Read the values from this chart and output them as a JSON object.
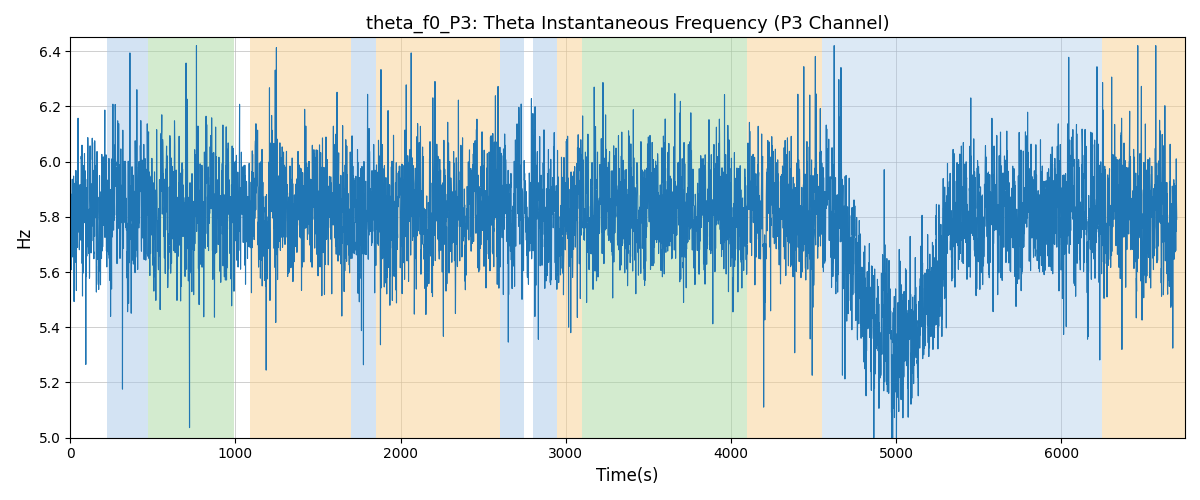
{
  "title": "theta_f0_P3: Theta Instantaneous Frequency (P3 Channel)",
  "xlabel": "Time(s)",
  "ylabel": "Hz",
  "ylim": [
    5.0,
    6.45
  ],
  "xlim": [
    0,
    6750
  ],
  "line_color": "#2076b4",
  "line_width": 0.8,
  "bg_bands": [
    {
      "xmin": 220,
      "xmax": 470,
      "color": "#a8c8e8",
      "alpha": 0.5
    },
    {
      "xmin": 470,
      "xmax": 990,
      "color": "#a8d8a0",
      "alpha": 0.5
    },
    {
      "xmin": 1090,
      "xmax": 1700,
      "color": "#f8d090",
      "alpha": 0.5
    },
    {
      "xmin": 1700,
      "xmax": 1850,
      "color": "#a8c8e8",
      "alpha": 0.5
    },
    {
      "xmin": 1850,
      "xmax": 2600,
      "color": "#f8d090",
      "alpha": 0.5
    },
    {
      "xmin": 2600,
      "xmax": 2750,
      "color": "#a8c8e8",
      "alpha": 0.5
    },
    {
      "xmin": 2800,
      "xmax": 2950,
      "color": "#a8c8e8",
      "alpha": 0.5
    },
    {
      "xmin": 2950,
      "xmax": 3100,
      "color": "#f8d090",
      "alpha": 0.5
    },
    {
      "xmin": 3100,
      "xmax": 4100,
      "color": "#a8d8a0",
      "alpha": 0.5
    },
    {
      "xmin": 4100,
      "xmax": 4550,
      "color": "#f8d090",
      "alpha": 0.5
    },
    {
      "xmin": 4550,
      "xmax": 6250,
      "color": "#a8c8e8",
      "alpha": 0.4
    },
    {
      "xmin": 6250,
      "xmax": 6750,
      "color": "#f8d090",
      "alpha": 0.5
    }
  ],
  "seed": 42,
  "n_points": 6700,
  "t_start": 0,
  "t_end": 6700,
  "mean_freq": 5.82,
  "figsize": [
    12.0,
    5.0
  ],
  "dpi": 100,
  "grid_color": "#b0b0b0",
  "grid_alpha": 0.6,
  "title_fontsize": 13
}
